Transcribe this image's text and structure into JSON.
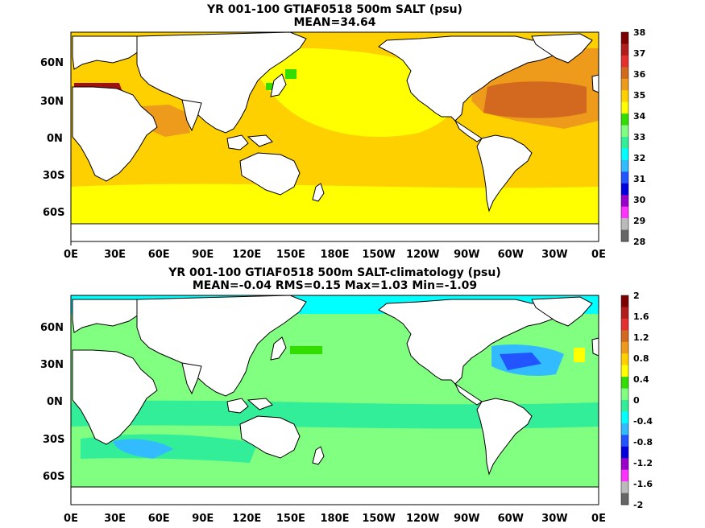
{
  "panels": [
    {
      "title1": "YR 001-100 GTIAF0518 500m SALT (psu)",
      "title2": "MEAN=34.64",
      "lat_labels": [
        "60N",
        "30N",
        "0N",
        "30S",
        "60S"
      ],
      "lon_labels": [
        "0E",
        "30E",
        "60E",
        "90E",
        "120E",
        "150E",
        "180E",
        "150W",
        "120W",
        "90W",
        "60W",
        "30W",
        "0E"
      ],
      "colorbar": {
        "labels": [
          "38",
          "37",
          "36",
          "35",
          "34",
          "33",
          "32",
          "31",
          "30",
          "29",
          "28"
        ],
        "colors": [
          "#7f0000",
          "#b31c1c",
          "#e53030",
          "#d2691e",
          "#ee9a1a",
          "#ffd000",
          "#ffff00",
          "#33dd00",
          "#80ff80",
          "#33ee99",
          "#00ffff",
          "#33bbff",
          "#2255ff",
          "#0000dd",
          "#9900cc",
          "#ff33ff",
          "#bbbbbb",
          "#666666"
        ]
      }
    },
    {
      "title1": "YR 001-100 GTIAF0518 500m SALT-climatology (psu)",
      "title2": "MEAN=-0.04   RMS=0.15   Max=1.03   Min=-1.09",
      "lat_labels": [
        "60N",
        "30N",
        "0N",
        "30S",
        "60S"
      ],
      "lon_labels": [
        "0E",
        "30E",
        "60E",
        "90E",
        "120E",
        "150E",
        "180E",
        "150W",
        "120W",
        "90W",
        "60W",
        "30W",
        "0E"
      ],
      "colorbar": {
        "labels": [
          "2",
          "1.6",
          "1.2",
          "0.8",
          "0.4",
          "0",
          "-0.4",
          "-0.8",
          "-1.2",
          "-1.6",
          "-2"
        ],
        "colors": [
          "#7f0000",
          "#b31c1c",
          "#e53030",
          "#d2691e",
          "#ee9a1a",
          "#ffd000",
          "#ffff00",
          "#33dd00",
          "#80ff80",
          "#33ee99",
          "#00ffff",
          "#33bbff",
          "#2255ff",
          "#0000dd",
          "#9900cc",
          "#ff33ff",
          "#bbbbbb",
          "#666666"
        ]
      }
    }
  ]
}
